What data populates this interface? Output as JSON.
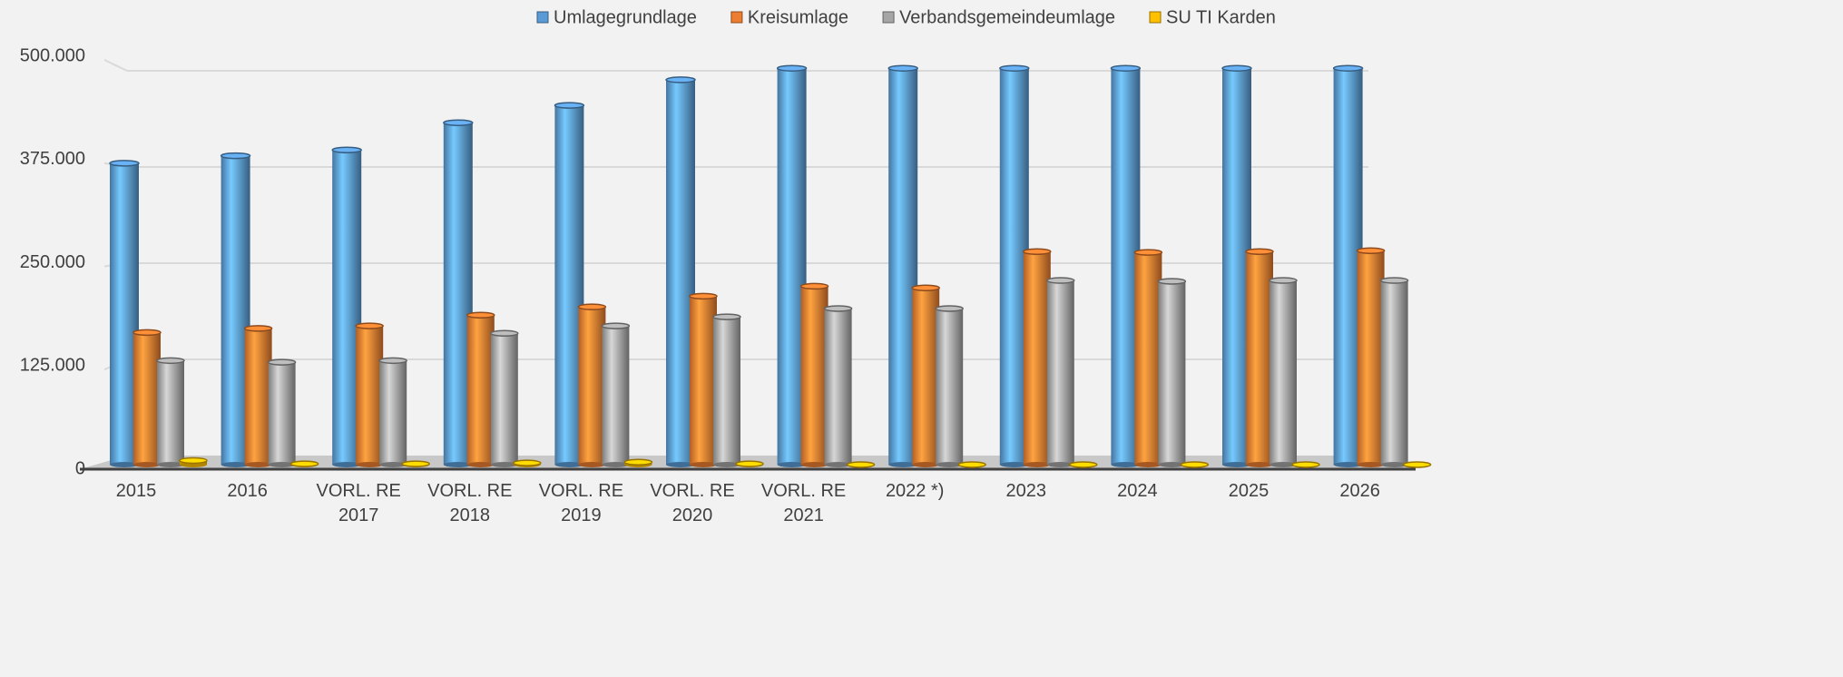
{
  "chart_data": {
    "type": "bar",
    "categories": [
      "2015",
      "2016",
      "VORL. RE 2017",
      "VORL. RE 2018",
      "VORL. RE 2019",
      "VORL. RE 2020",
      "VORL. RE 2021",
      "2022 *)",
      "2023",
      "2024",
      "2025",
      "2026"
    ],
    "series": [
      {
        "name": "Umlagegrundlage",
        "color": "#5b9bd5",
        "values": [
          376000,
          385000,
          392000,
          425000,
          446000,
          477000,
          491000,
          491000,
          491000,
          491000,
          491000,
          491000
        ]
      },
      {
        "name": "Kreisumlage",
        "color": "#ed7d31",
        "values": [
          171000,
          176000,
          179000,
          192000,
          202000,
          215000,
          227000,
          225000,
          269000,
          268000,
          269000,
          270000
        ]
      },
      {
        "name": "Verbandsgemeindeumlage",
        "color": "#a5a5a5",
        "values": [
          137000,
          135000,
          137000,
          170000,
          179000,
          190000,
          200000,
          200000,
          234000,
          233000,
          234000,
          234000
        ]
      },
      {
        "name": "SU TI Karden",
        "color": "#ffc000",
        "values": [
          16000,
          12000,
          12000,
          13000,
          14000,
          12000,
          11000,
          11000,
          11000,
          11000,
          11000,
          11000
        ]
      }
    ],
    "ylim": [
      0,
      500000
    ],
    "yticks": [
      0,
      {
        "value": 125000,
        "label": "125.000"
      },
      {
        "value": 250000,
        "label": "250.000"
      },
      {
        "value": 375000,
        "label": "375.000"
      },
      {
        "value": 500000,
        "label": "500.000"
      }
    ],
    "grid": true,
    "legend": "top"
  }
}
